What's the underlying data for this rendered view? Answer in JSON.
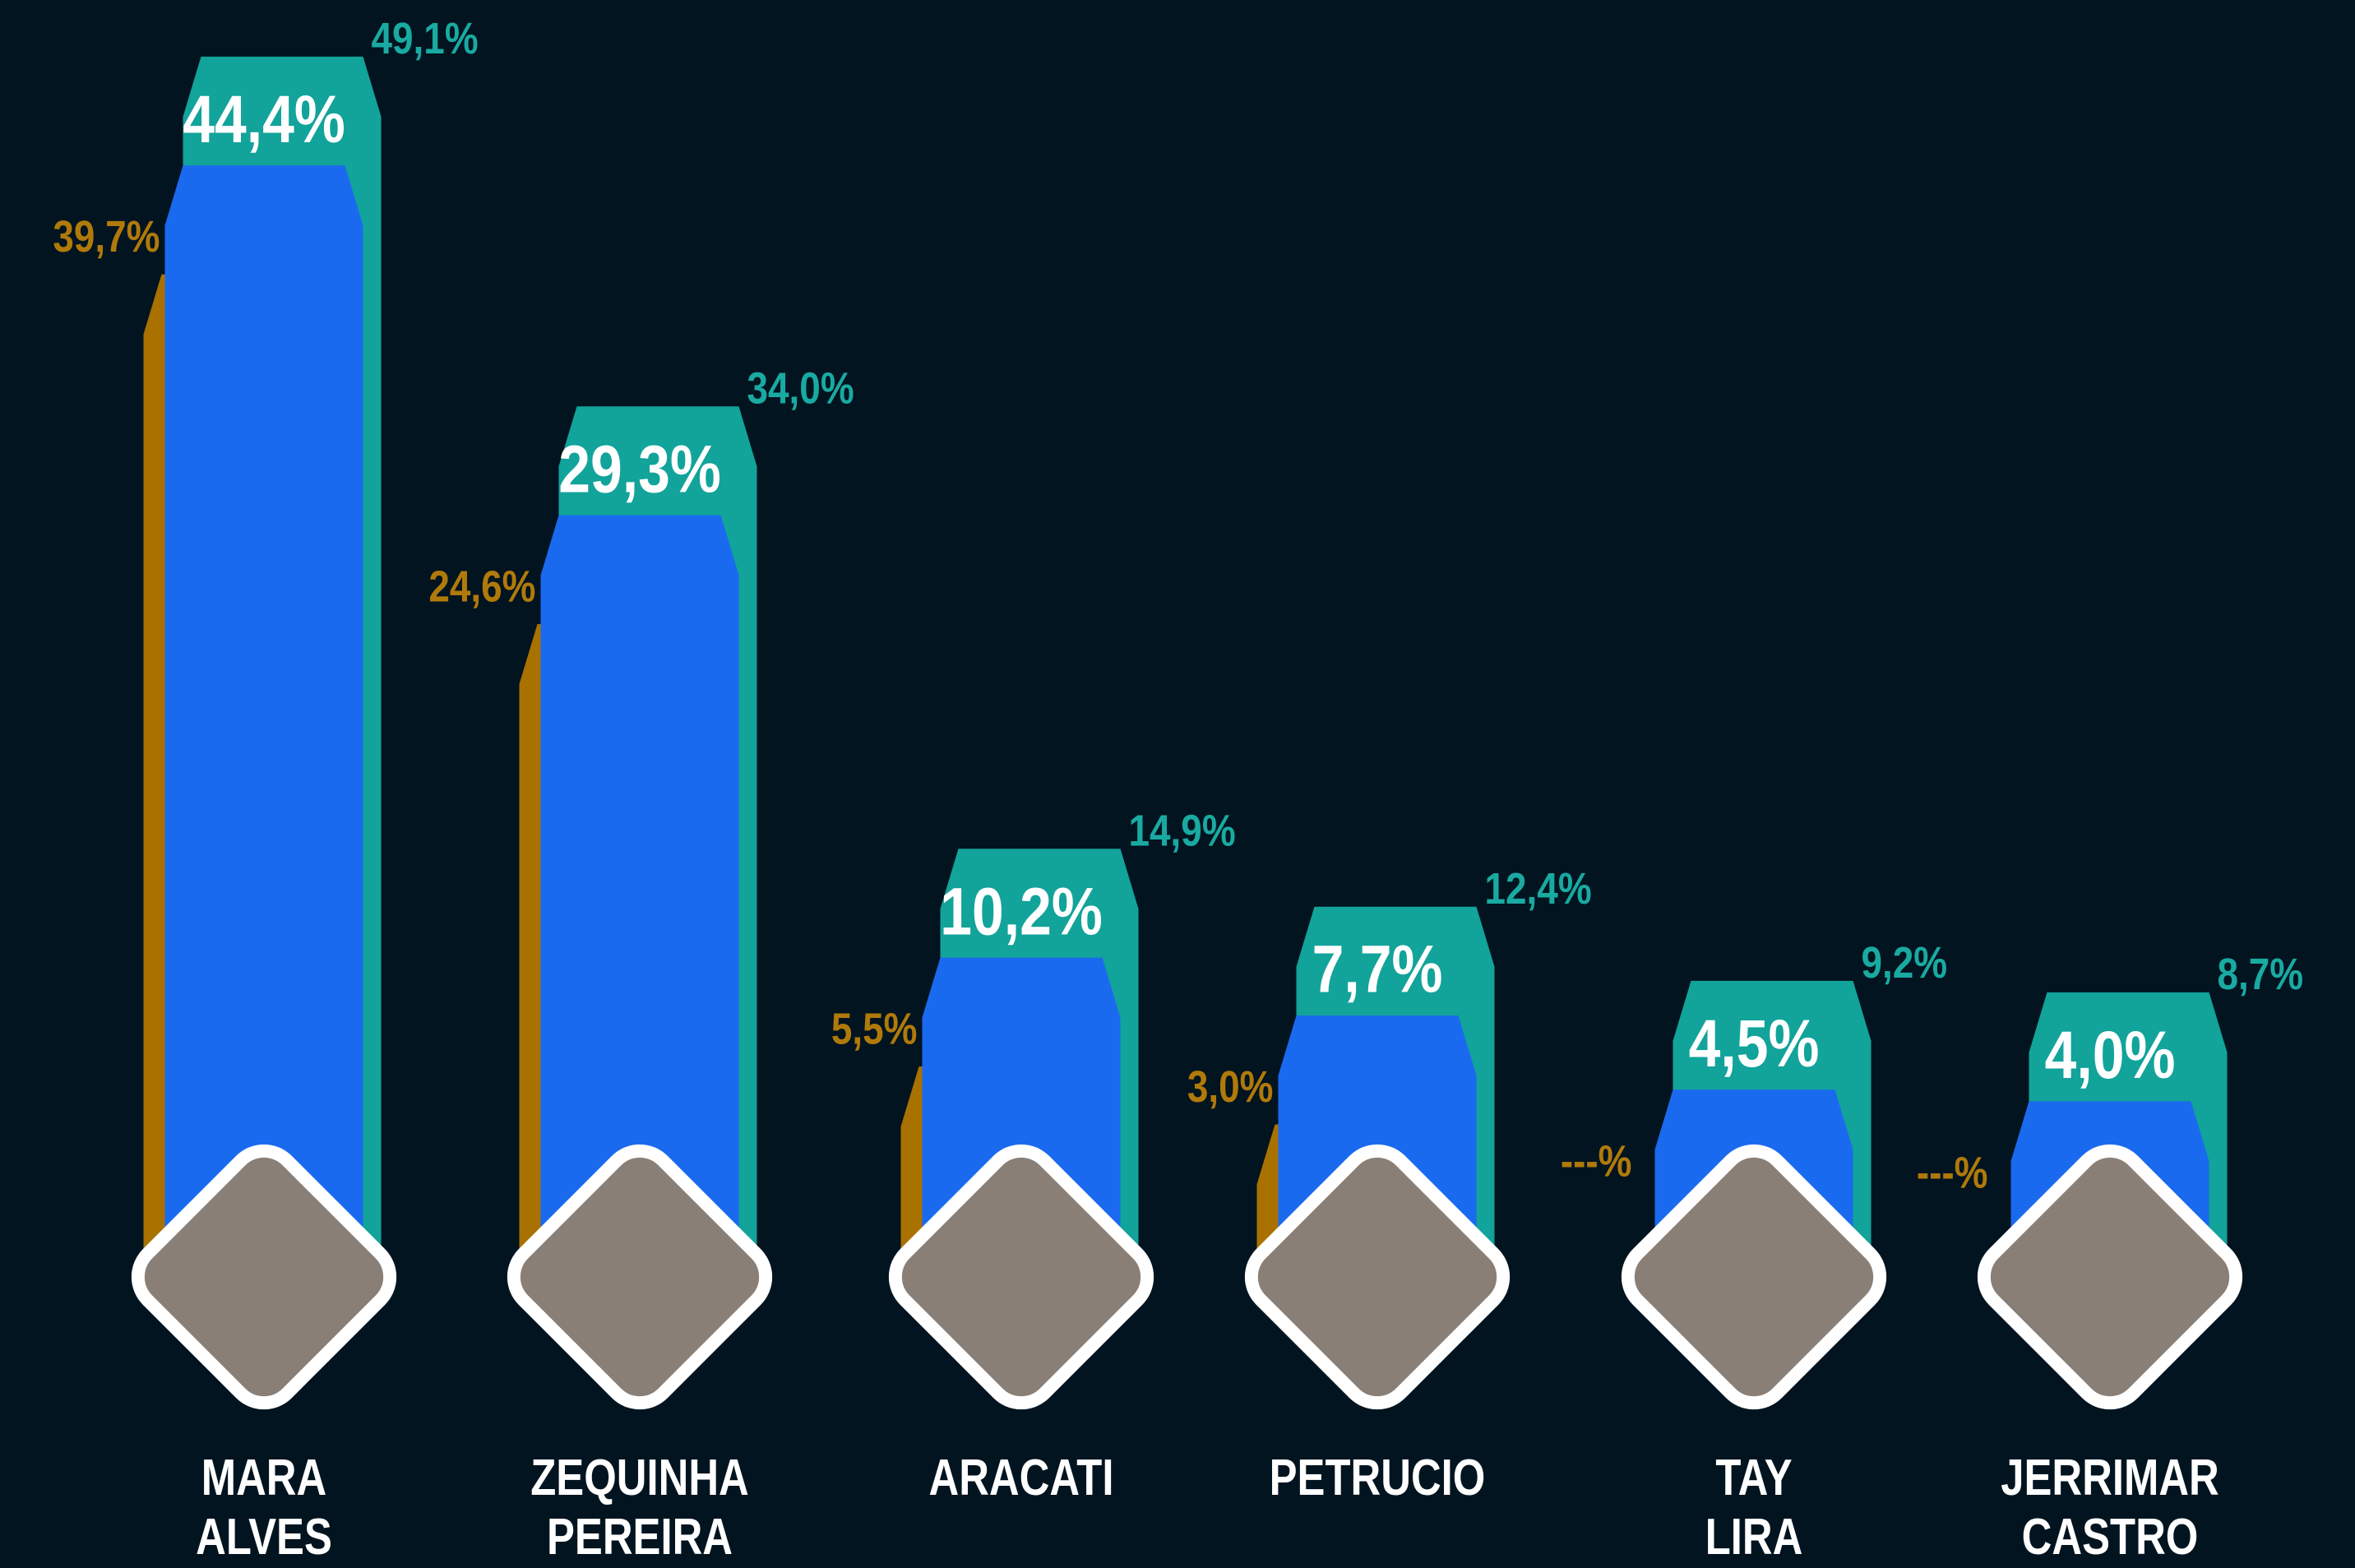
{
  "chart_data": {
    "type": "bar",
    "categories": [
      "MARA\nALVES",
      "ZEQUINHA\nPEREIRA",
      "ARACATI",
      "PETRUCIO",
      "TAY\nLIRA",
      "JERRIMAR\nCASTRO"
    ],
    "series": [
      {
        "color": "#12a39a",
        "label_color": "#19aaa1",
        "values": [
          49.1,
          34.0,
          14.9,
          12.4,
          9.2,
          8.7
        ],
        "value_labels": [
          "49,1%",
          "34,0%",
          "14,9%",
          "12,4%",
          "9,2%",
          "8,7%"
        ]
      },
      {
        "color": "#a87100",
        "label_color": "#b07a0a",
        "values": [
          39.7,
          24.6,
          5.5,
          3.0,
          null,
          null
        ],
        "value_labels": [
          "39,7%",
          "24,6%",
          "5,5%",
          "3,0%",
          "---%",
          "---%"
        ]
      },
      {
        "color": "#1a6af0",
        "label_color": "#ffffff",
        "values": [
          44.4,
          29.3,
          10.2,
          7.7,
          4.5,
          4.0
        ],
        "value_labels": [
          "44,4%",
          "29,3%",
          "10,2%",
          "7,7%",
          "4,5%",
          "4,0%"
        ]
      }
    ]
  }
}
